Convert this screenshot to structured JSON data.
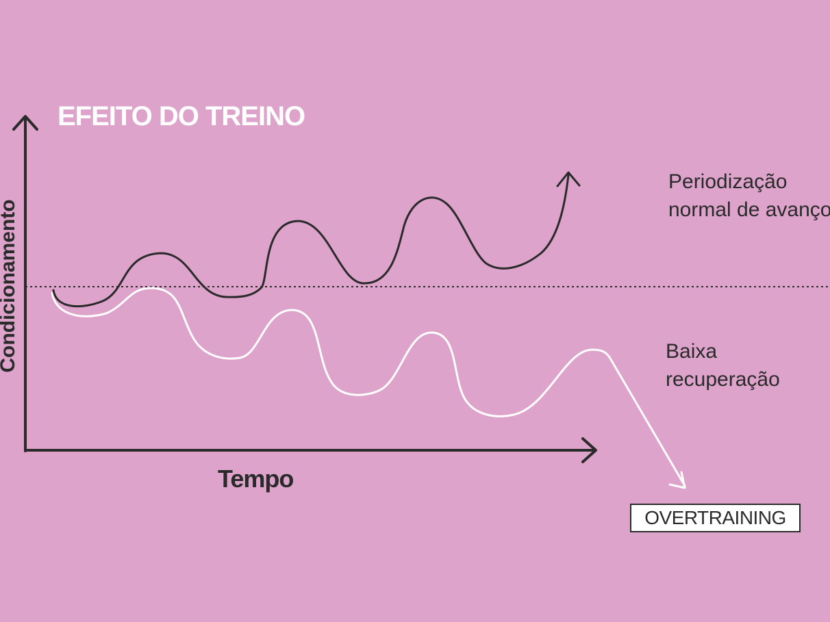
{
  "title": "EFEITO DO TREINO",
  "axes": {
    "y_label": "Condicionamento",
    "x_label": "Tempo"
  },
  "curves": {
    "good": {
      "label_lines": [
        "Periodização",
        "normal de avanço"
      ]
    },
    "bad": {
      "label_lines": [
        "Baixa",
        "recuperação"
      ]
    }
  },
  "badge": {
    "label": "OVERTRAINING"
  },
  "colors": {
    "background": "#dda3cb",
    "ink": "#2a2a2a",
    "white": "#ffffff"
  }
}
